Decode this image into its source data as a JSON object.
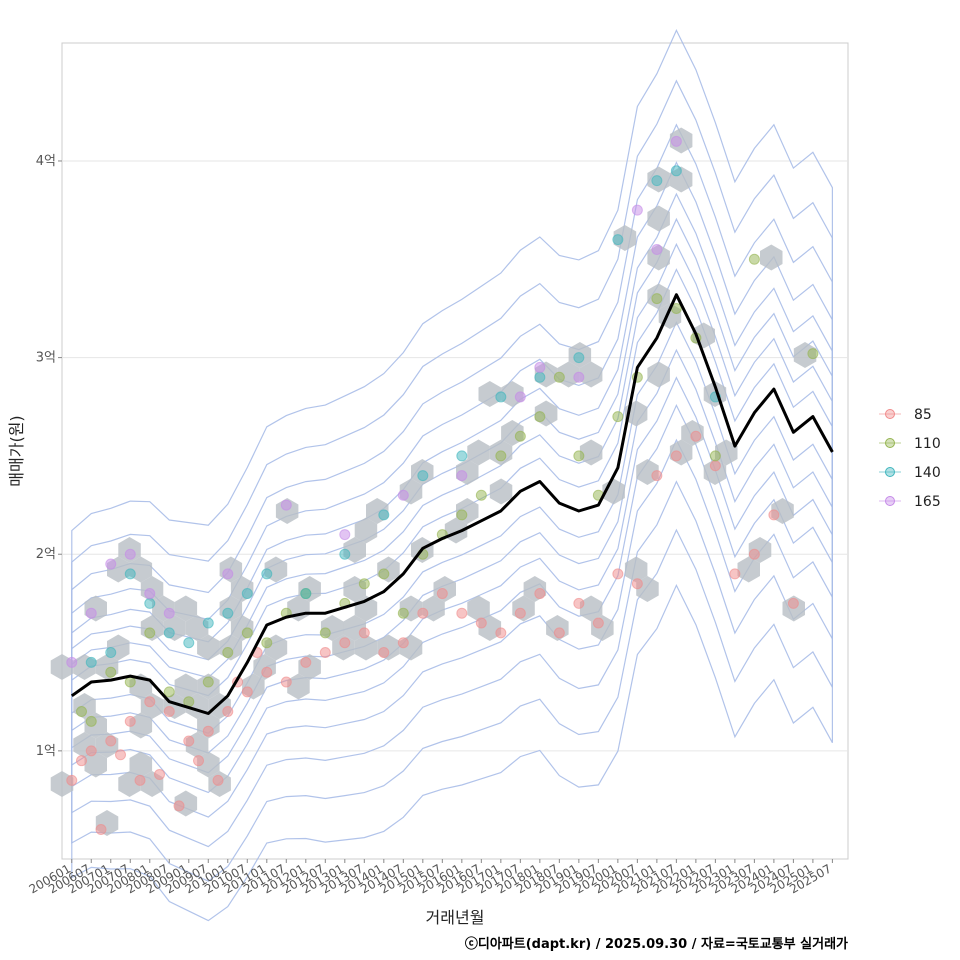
{
  "chart_data": {
    "type": "scatter",
    "xlabel": "거래년월",
    "ylabel": "매매가(원)",
    "caption": "ⓒ디아파트(dapt.kr) / 2025.09.30 / 자료=국토교통부 실거래가",
    "x_ticks": [
      "200601",
      "200607",
      "200701",
      "200707",
      "200801",
      "200807",
      "200901",
      "200907",
      "201001",
      "201007",
      "201101",
      "201107",
      "201201",
      "201207",
      "201301",
      "201307",
      "201401",
      "201407",
      "201501",
      "201507",
      "201601",
      "201607",
      "201701",
      "201707",
      "201801",
      "201807",
      "201901",
      "201907",
      "202001",
      "202007",
      "202101",
      "202107",
      "202201",
      "202207",
      "202301",
      "202307",
      "202401",
      "202407",
      "202501",
      "202507"
    ],
    "y_ticks": [
      {
        "value": 1,
        "label": "1억"
      },
      {
        "value": 2,
        "label": "2억"
      },
      {
        "value": 3,
        "label": "3억"
      },
      {
        "value": 4,
        "label": "4억"
      }
    ],
    "xlim": [
      -0.5,
      39.8
    ],
    "ylim": [
      0.45,
      4.6
    ],
    "legend": {
      "position": "right",
      "entries": [
        {
          "label": "85",
          "color": "#f08a8a"
        },
        {
          "label": "110",
          "color": "#94b44f"
        },
        {
          "label": "140",
          "color": "#3fb5bd"
        },
        {
          "label": "165",
          "color": "#c58ae8"
        }
      ]
    },
    "trend_line": {
      "name": "median",
      "color": "#000000",
      "x": [
        0,
        1,
        2,
        3,
        4,
        5,
        6,
        7,
        8,
        9,
        10,
        11,
        12,
        13,
        14,
        15,
        16,
        17,
        18,
        19,
        20,
        21,
        22,
        23,
        24,
        25,
        26,
        27,
        28,
        29,
        30,
        31,
        32,
        33,
        34,
        35,
        36,
        37,
        38,
        39
      ],
      "y": [
        1.28,
        1.35,
        1.36,
        1.38,
        1.36,
        1.25,
        1.22,
        1.19,
        1.28,
        1.45,
        1.64,
        1.68,
        1.7,
        1.7,
        1.73,
        1.76,
        1.81,
        1.9,
        2.03,
        2.08,
        2.12,
        2.17,
        2.22,
        2.32,
        2.37,
        2.26,
        2.22,
        2.25,
        2.44,
        2.95,
        3.1,
        3.32,
        3.12,
        2.85,
        2.55,
        2.72,
        2.84,
        2.62,
        2.7,
        2.52
      ]
    },
    "series": [
      {
        "name": "85",
        "x": [
          0,
          0.5,
          1,
          1.5,
          2,
          2.5,
          3,
          3.5,
          4,
          4.5,
          5,
          5.5,
          6,
          6.5,
          7,
          7.5,
          8,
          8.5,
          9,
          9.5,
          10,
          11,
          12,
          13,
          14,
          15,
          16,
          17,
          18,
          19,
          20,
          21,
          22,
          23,
          24,
          25,
          26,
          27,
          28,
          29,
          30,
          31,
          32,
          33,
          34,
          35,
          36,
          37
        ],
        "y": [
          0.85,
          0.95,
          1.0,
          0.6,
          1.05,
          0.98,
          1.15,
          0.85,
          1.25,
          0.88,
          1.2,
          0.72,
          1.05,
          0.95,
          1.1,
          0.85,
          1.2,
          1.35,
          1.3,
          1.5,
          1.4,
          1.35,
          1.45,
          1.5,
          1.55,
          1.6,
          1.5,
          1.55,
          1.7,
          1.8,
          1.7,
          1.65,
          1.6,
          1.7,
          1.8,
          1.6,
          1.75,
          1.65,
          1.9,
          1.85,
          2.4,
          2.5,
          2.6,
          2.45,
          1.9,
          2.0,
          2.2,
          1.75
        ]
      },
      {
        "name": "110",
        "x": [
          0.5,
          1,
          2,
          3,
          4,
          5,
          6,
          7,
          8,
          9,
          10,
          11,
          12,
          13,
          14,
          15,
          16,
          17,
          18,
          19,
          20,
          21,
          22,
          23,
          24,
          25,
          26,
          27,
          28,
          29,
          30,
          31,
          32,
          33,
          35,
          38
        ],
        "y": [
          1.2,
          1.15,
          1.4,
          1.35,
          1.6,
          1.3,
          1.25,
          1.35,
          1.5,
          1.6,
          1.55,
          1.7,
          1.8,
          1.6,
          1.75,
          1.85,
          1.9,
          1.7,
          2.0,
          2.1,
          2.2,
          2.3,
          2.5,
          2.6,
          2.7,
          2.9,
          2.5,
          2.3,
          2.7,
          2.9,
          3.3,
          3.25,
          3.1,
          2.5,
          3.5,
          3.02
        ]
      },
      {
        "name": "140",
        "x": [
          1,
          2,
          3,
          4,
          5,
          6,
          7,
          8,
          9,
          10,
          12,
          14,
          16,
          18,
          20,
          22,
          24,
          26,
          28,
          30,
          31,
          33
        ],
        "y": [
          1.45,
          1.5,
          1.9,
          1.75,
          1.6,
          1.55,
          1.65,
          1.7,
          1.8,
          1.9,
          1.8,
          2.0,
          2.2,
          2.4,
          2.5,
          2.8,
          2.9,
          3.0,
          3.6,
          3.9,
          3.95,
          2.8
        ]
      },
      {
        "name": "165",
        "x": [
          0,
          1,
          2,
          3,
          4,
          5,
          8,
          11,
          14,
          17,
          20,
          23,
          24,
          26,
          29,
          30,
          31
        ],
        "y": [
          1.45,
          1.7,
          1.95,
          2.0,
          1.8,
          1.7,
          1.9,
          2.25,
          2.1,
          2.3,
          2.4,
          2.8,
          2.95,
          2.9,
          3.75,
          3.55,
          4.1
        ]
      }
    ]
  }
}
